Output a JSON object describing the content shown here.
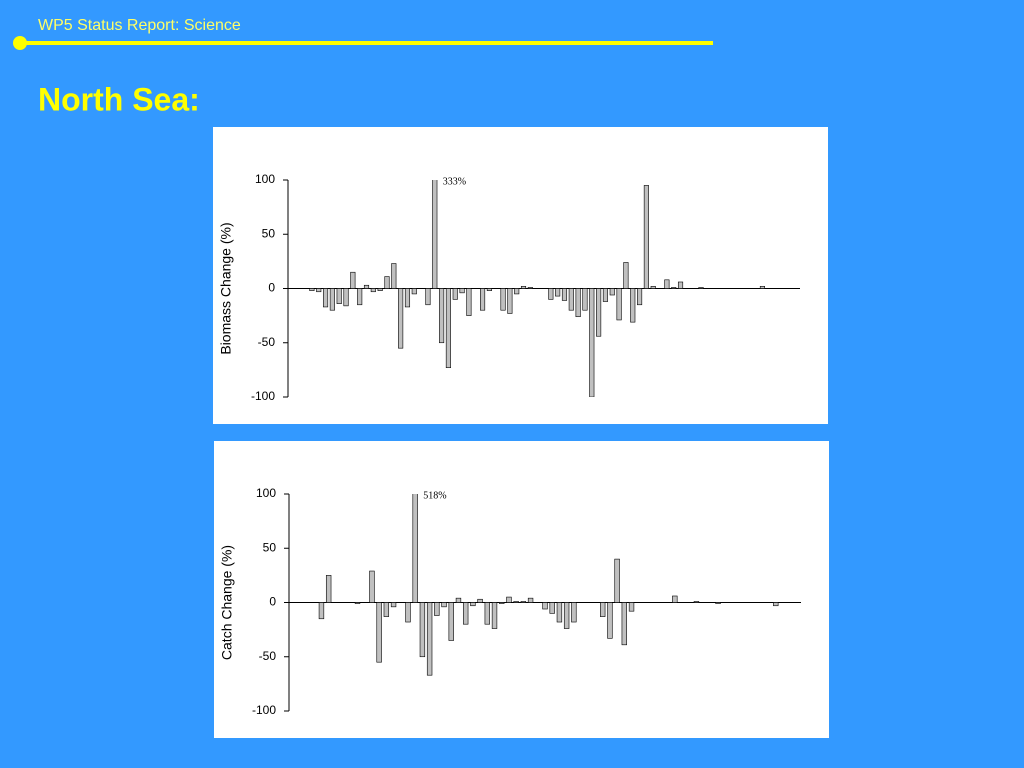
{
  "header": {
    "title": "WP5 Status Report: Science",
    "heading": "North Sea:"
  },
  "chart_data": [
    {
      "type": "bar",
      "ylabel": "Biomass Change (%)",
      "color": "#c0c0c0",
      "ylim": [
        -100,
        100
      ],
      "yticks": [
        -100,
        -50,
        0,
        50,
        100
      ],
      "categories": [
        null,
        null,
        null,
        null,
        null,
        null,
        null,
        null,
        null,
        null,
        null,
        null,
        null,
        null,
        null,
        null,
        null,
        null,
        null,
        null,
        null,
        null,
        null,
        null,
        null,
        null,
        null,
        null,
        null,
        null,
        null,
        null,
        null,
        null,
        null,
        null,
        null,
        null,
        null,
        null,
        null,
        null,
        null,
        null,
        null,
        null,
        null,
        null,
        null,
        null,
        null,
        null,
        null,
        null,
        null,
        null,
        null,
        null,
        null,
        null,
        null,
        null,
        null,
        null,
        null,
        null,
        null,
        null,
        null,
        null,
        null,
        null,
        null,
        null,
        null
      ],
      "values": [
        0,
        0,
        0,
        -2,
        -3,
        -17,
        -20,
        -14,
        -16,
        15,
        -15,
        3,
        -3,
        -2,
        11,
        23,
        -55,
        -17,
        -5,
        0,
        -15,
        333,
        -50,
        -73,
        -10,
        -4,
        -25,
        0,
        -20,
        -2,
        0,
        -20,
        -23,
        -5,
        2,
        1,
        0,
        0,
        -10,
        -7,
        -11,
        -20,
        -26,
        -20,
        -100,
        -44,
        -12,
        -6,
        -29,
        24,
        -31,
        -15,
        95,
        2,
        0,
        8,
        1,
        6,
        0,
        0,
        1,
        0,
        0,
        0,
        0,
        0,
        0,
        0,
        0,
        2,
        0,
        0,
        0,
        0,
        0
      ],
      "value_labels": [
        null,
        null,
        null,
        null,
        null,
        null,
        null,
        null,
        null,
        null,
        null,
        null,
        null,
        null,
        null,
        null,
        null,
        null,
        null,
        null,
        null,
        "333%",
        null,
        null,
        null,
        null,
        null,
        null,
        null,
        null,
        null,
        null,
        null,
        null,
        null,
        null,
        null,
        null,
        null,
        null,
        null,
        null,
        null,
        null,
        null,
        null,
        null,
        null,
        null,
        null,
        null,
        null,
        null,
        null,
        null,
        null,
        null,
        null,
        null,
        null,
        null,
        null,
        null,
        null,
        null,
        null,
        null,
        null,
        null,
        null,
        null,
        null,
        null,
        null,
        null
      ]
    },
    {
      "type": "bar",
      "ylabel": "Catch Change (%)",
      "color": "#c0c0c0",
      "ylim": [
        -100,
        100
      ],
      "yticks": [
        -100,
        -50,
        0,
        50,
        100
      ],
      "categories": [
        null,
        null,
        null,
        null,
        null,
        null,
        null,
        null,
        null,
        null,
        null,
        null,
        null,
        null,
        null,
        null,
        null,
        null,
        null,
        null,
        null,
        null,
        null,
        null,
        null,
        null,
        null,
        null,
        null,
        null,
        null,
        null,
        null,
        null,
        null,
        null,
        null,
        null,
        null,
        null,
        null,
        null,
        null,
        null,
        null,
        null,
        null,
        null,
        null,
        null,
        null,
        null,
        null,
        null,
        null,
        null,
        null,
        null,
        null,
        null,
        null,
        null,
        null,
        null,
        null,
        null,
        null,
        null,
        null,
        null,
        null
      ],
      "values": [
        0,
        0,
        0,
        0,
        -15,
        25,
        0,
        0,
        0,
        -1,
        0,
        29,
        -55,
        -13,
        -4,
        0,
        -18,
        518,
        -50,
        -67,
        -12,
        -4,
        -35,
        4,
        -20,
        -3,
        3,
        -20,
        -24,
        -1,
        5,
        1,
        1,
        4,
        0,
        -6,
        -10,
        -18,
        -24,
        -18,
        0,
        0,
        0,
        -13,
        -33,
        40,
        -39,
        -8,
        0,
        0,
        0,
        0,
        0,
        6,
        0,
        0,
        1,
        0,
        0,
        -1,
        0,
        0,
        0,
        0,
        0,
        0,
        0,
        -3,
        0,
        0,
        0
      ],
      "value_labels": [
        null,
        null,
        null,
        null,
        null,
        null,
        null,
        null,
        null,
        null,
        null,
        null,
        null,
        null,
        null,
        null,
        null,
        "518%",
        null,
        null,
        null,
        null,
        null,
        null,
        null,
        null,
        null,
        null,
        null,
        null,
        null,
        null,
        null,
        null,
        null,
        null,
        null,
        null,
        null,
        null,
        null,
        null,
        null,
        null,
        null,
        null,
        null,
        null,
        null,
        null,
        null,
        null,
        null,
        null,
        null,
        null,
        null,
        null,
        null,
        null,
        null,
        null,
        null,
        null,
        null,
        null,
        null,
        null,
        null,
        null,
        null
      ]
    }
  ]
}
